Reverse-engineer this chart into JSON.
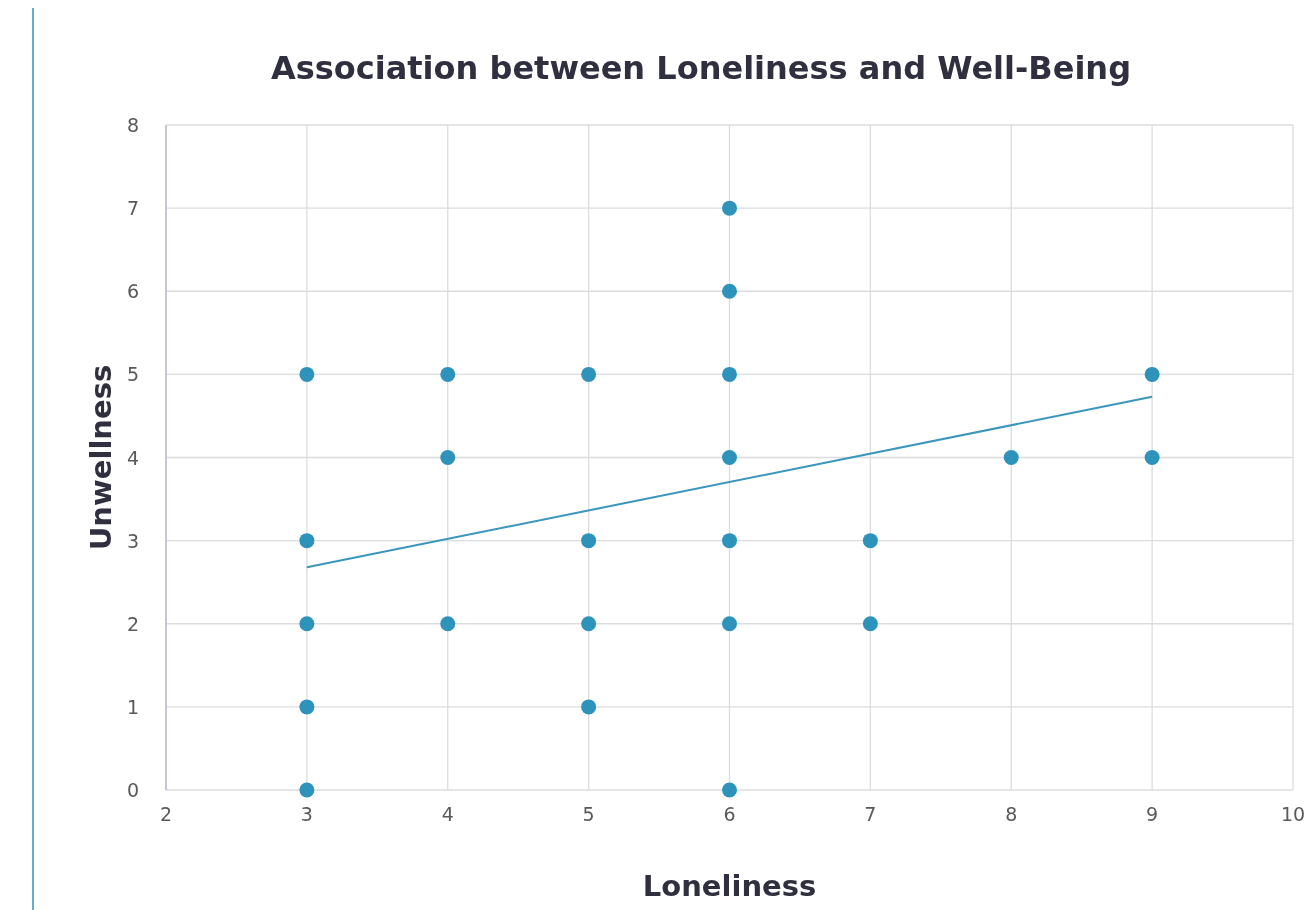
{
  "chart_data": {
    "type": "scatter",
    "title": "Association between Loneliness and Well-Being",
    "xlabel": "Loneliness",
    "ylabel": "Unwellness",
    "xlim": [
      2,
      10
    ],
    "xticks": [
      2,
      3,
      4,
      5,
      6,
      7,
      8,
      9,
      10
    ],
    "ylim": [
      0,
      8
    ],
    "yticks": [
      0,
      1,
      2,
      3,
      4,
      5,
      6,
      7,
      8
    ],
    "grid": true,
    "marker": "circle",
    "series": [
      {
        "color": "#2e93bb",
        "x": [
          3,
          3,
          3,
          3,
          3,
          4,
          4,
          4,
          5,
          5,
          5,
          5,
          6,
          6,
          6,
          6,
          6,
          6,
          6,
          7,
          7,
          8,
          9,
          9
        ],
        "values": [
          5,
          3,
          2,
          1,
          0,
          5,
          4,
          2,
          5,
          3,
          2,
          1,
          7,
          6,
          5,
          4,
          3,
          2,
          0,
          3,
          2,
          4,
          5,
          4
        ]
      },
      {
        "type": "line",
        "color": "#3a96bd",
        "x": [
          3,
          9
        ],
        "values": [
          2.68,
          4.73
        ],
        "marker": "none"
      }
    ]
  }
}
